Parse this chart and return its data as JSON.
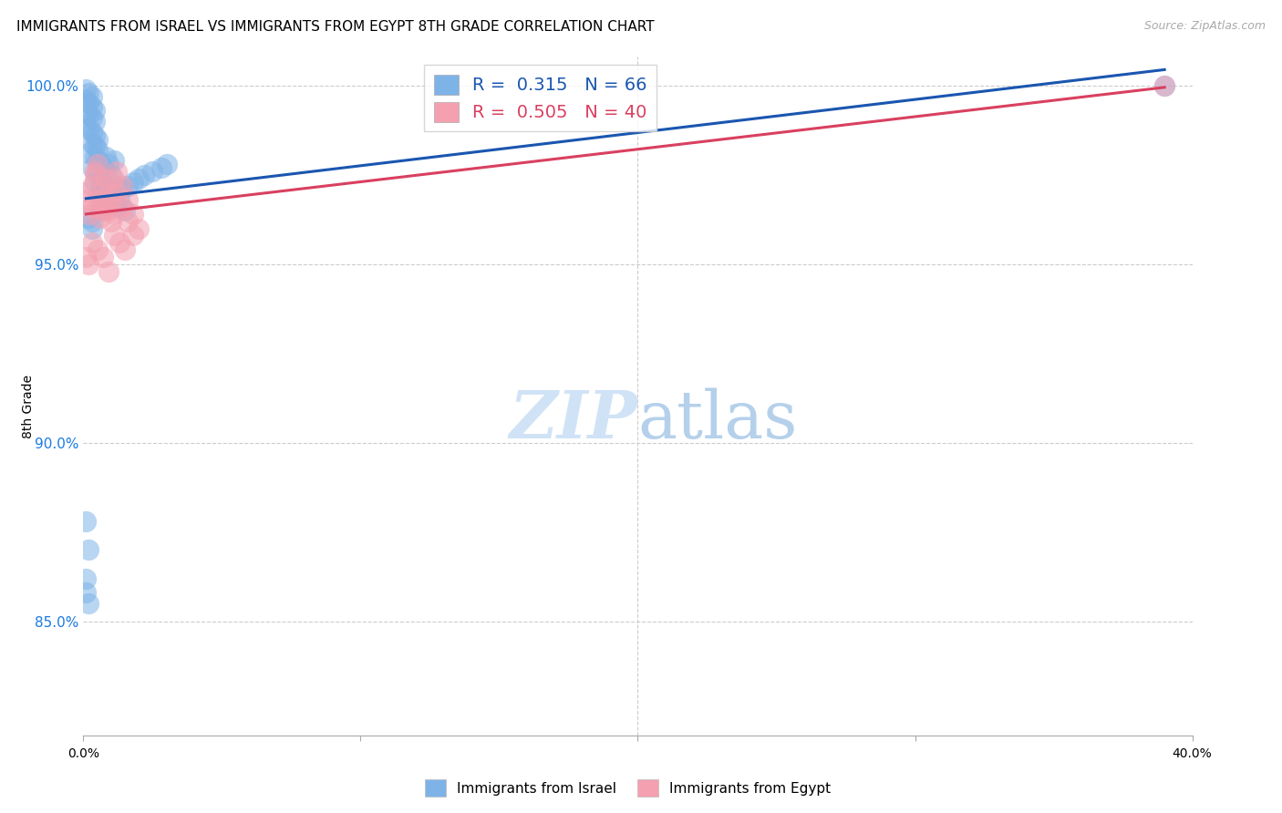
{
  "title": "IMMIGRANTS FROM ISRAEL VS IMMIGRANTS FROM EGYPT 8TH GRADE CORRELATION CHART",
  "source": "Source: ZipAtlas.com",
  "ylabel_label": "8th Grade",
  "xmin": 0.0,
  "xmax": 0.4,
  "ymin": 0.818,
  "ymax": 1.008,
  "yticks": [
    0.85,
    0.9,
    0.95,
    1.0
  ],
  "ytick_labels": [
    "85.0%",
    "90.0%",
    "95.0%",
    "100.0%"
  ],
  "israel_R": 0.315,
  "israel_N": 66,
  "egypt_R": 0.505,
  "egypt_N": 40,
  "israel_color": "#7EB3E8",
  "israel_line_color": "#1A56B0",
  "egypt_color": "#F4A0B0",
  "egypt_line_color": "#D94060",
  "israel_x": [
    0.001,
    0.002,
    0.003,
    0.001,
    0.002,
    0.003,
    0.004,
    0.002,
    0.003,
    0.004,
    0.001,
    0.002,
    0.003,
    0.004,
    0.005,
    0.003,
    0.004,
    0.005,
    0.002,
    0.004,
    0.005,
    0.006,
    0.003,
    0.005,
    0.006,
    0.007,
    0.004,
    0.006,
    0.007,
    0.008,
    0.005,
    0.007,
    0.008,
    0.009,
    0.006,
    0.008,
    0.01,
    0.007,
    0.009,
    0.011,
    0.008,
    0.01,
    0.012,
    0.009,
    0.011,
    0.013,
    0.01,
    0.012,
    0.015,
    0.014,
    0.016,
    0.018,
    0.02,
    0.022,
    0.025,
    0.028,
    0.03,
    0.001,
    0.002,
    0.001,
    0.001,
    0.002,
    0.003,
    0.003,
    0.002,
    0.39
  ],
  "israel_y": [
    0.999,
    0.998,
    0.997,
    0.996,
    0.995,
    0.994,
    0.993,
    0.992,
    0.991,
    0.99,
    0.989,
    0.988,
    0.987,
    0.986,
    0.985,
    0.984,
    0.983,
    0.982,
    0.981,
    0.98,
    0.979,
    0.978,
    0.977,
    0.976,
    0.975,
    0.974,
    0.973,
    0.972,
    0.971,
    0.97,
    0.969,
    0.968,
    0.967,
    0.966,
    0.965,
    0.976,
    0.975,
    0.977,
    0.978,
    0.979,
    0.98,
    0.971,
    0.972,
    0.97,
    0.969,
    0.968,
    0.967,
    0.966,
    0.965,
    0.971,
    0.972,
    0.973,
    0.974,
    0.975,
    0.976,
    0.977,
    0.978,
    0.878,
    0.87,
    0.862,
    0.858,
    0.855,
    0.96,
    0.962,
    0.963,
    1.0
  ],
  "egypt_x": [
    0.001,
    0.002,
    0.003,
    0.002,
    0.004,
    0.003,
    0.005,
    0.004,
    0.006,
    0.005,
    0.007,
    0.006,
    0.008,
    0.007,
    0.009,
    0.008,
    0.01,
    0.009,
    0.011,
    0.01,
    0.012,
    0.011,
    0.014,
    0.012,
    0.016,
    0.014,
    0.018,
    0.016,
    0.02,
    0.018,
    0.003,
    0.005,
    0.007,
    0.002,
    0.009,
    0.011,
    0.013,
    0.015,
    0.001,
    0.39
  ],
  "egypt_y": [
    0.97,
    0.968,
    0.966,
    0.964,
    0.975,
    0.972,
    0.978,
    0.976,
    0.968,
    0.966,
    0.965,
    0.963,
    0.974,
    0.972,
    0.97,
    0.968,
    0.967,
    0.965,
    0.964,
    0.962,
    0.976,
    0.974,
    0.972,
    0.97,
    0.968,
    0.966,
    0.964,
    0.962,
    0.96,
    0.958,
    0.956,
    0.954,
    0.952,
    0.95,
    0.948,
    0.958,
    0.956,
    0.954,
    0.952,
    1.0
  ],
  "watermark_zip": "ZIP",
  "watermark_atlas": "atlas",
  "background_color": "#ffffff",
  "grid_color": "#cccccc"
}
